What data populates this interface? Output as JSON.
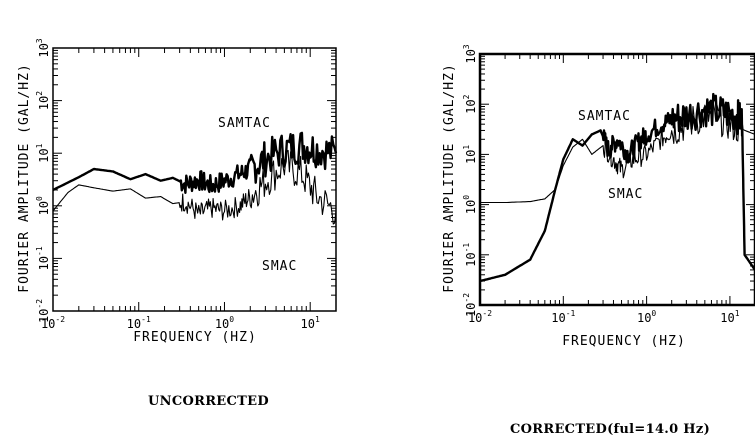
{
  "chart_data": [
    {
      "type": "line",
      "caption": "UNCORRECTED",
      "xlabel": "FREQUENCY (HZ)",
      "ylabel": "FOURIER AMPLITUDE (GAL/HZ)",
      "xscale": "log",
      "yscale": "log",
      "xlim": [
        0.01,
        20
      ],
      "ylim": [
        0.01,
        1000
      ],
      "x_tick_labels": [
        "10-2",
        "10-1",
        "10^0",
        "10^1"
      ],
      "y_tick_labels": [
        "10^-2",
        "10^-1",
        "10^0",
        "10^1",
        "10^2",
        "10^3"
      ],
      "series": [
        {
          "name": "SAMTAC",
          "style": "thick",
          "x": [
            0.01,
            0.02,
            0.03,
            0.05,
            0.08,
            0.12,
            0.18,
            0.25,
            0.35,
            0.5,
            0.7,
            1.0,
            1.5,
            2,
            3,
            5,
            8,
            12,
            20
          ],
          "y": [
            2,
            3.5,
            5,
            4.5,
            3.2,
            4,
            3,
            3.4,
            2.6,
            3.1,
            2.4,
            3,
            4,
            5,
            8,
            12,
            14,
            12,
            10
          ]
        },
        {
          "name": "SMAC",
          "style": "thin",
          "x": [
            0.01,
            0.015,
            0.02,
            0.03,
            0.05,
            0.08,
            0.12,
            0.18,
            0.25,
            0.35,
            0.5,
            0.7,
            1.0,
            1.5,
            2,
            3,
            5,
            8,
            12,
            20
          ],
          "y": [
            0.8,
            1.8,
            2.5,
            2.2,
            1.9,
            2.1,
            1.4,
            1.5,
            1.1,
            1.2,
            0.7,
            0.9,
            0.8,
            1.0,
            1.5,
            3,
            6,
            4,
            1.5,
            0.8
          ]
        }
      ]
    },
    {
      "type": "line",
      "caption": "CORRECTED(ful=14.0 Hz)",
      "xlabel": "FREQUENCY (HZ)",
      "ylabel": "FOURIER AMPLITUDE (GAL/HZ)",
      "xscale": "log",
      "yscale": "log",
      "xlim": [
        0.01,
        20
      ],
      "ylim": [
        0.01,
        1000
      ],
      "x_tick_labels": [
        "10-2",
        "10-1",
        "10^0",
        "10^1"
      ],
      "y_tick_labels": [
        "10-2",
        "10-1",
        "10^0",
        "10^1",
        "10^2",
        "10^3"
      ],
      "series": [
        {
          "name": "SAMTAC",
          "style": "thick",
          "x": [
            0.01,
            0.02,
            0.04,
            0.06,
            0.08,
            0.1,
            0.13,
            0.17,
            0.22,
            0.28,
            0.35,
            0.45,
            0.6,
            0.8,
            1.0,
            1.5,
            2,
            3,
            5,
            8,
            12,
            14,
            15,
            20
          ],
          "y": [
            0.03,
            0.04,
            0.08,
            0.3,
            2,
            8,
            20,
            15,
            25,
            30,
            12,
            20,
            10,
            18,
            25,
            40,
            50,
            60,
            80,
            70,
            60,
            45,
            0.1,
            0.05
          ]
        },
        {
          "name": "SMAC",
          "style": "thin",
          "x": [
            0.01,
            0.02,
            0.04,
            0.06,
            0.08,
            0.1,
            0.13,
            0.17,
            0.22,
            0.3,
            0.4,
            0.5,
            0.7,
            1.0,
            1.5,
            2,
            3,
            5,
            8,
            12,
            20
          ],
          "y": [
            1.1,
            1.1,
            1.15,
            1.3,
            2,
            6,
            14,
            20,
            10,
            15,
            8,
            5,
            8,
            10,
            20,
            30,
            40,
            60,
            50,
            35,
            25
          ]
        }
      ]
    }
  ]
}
